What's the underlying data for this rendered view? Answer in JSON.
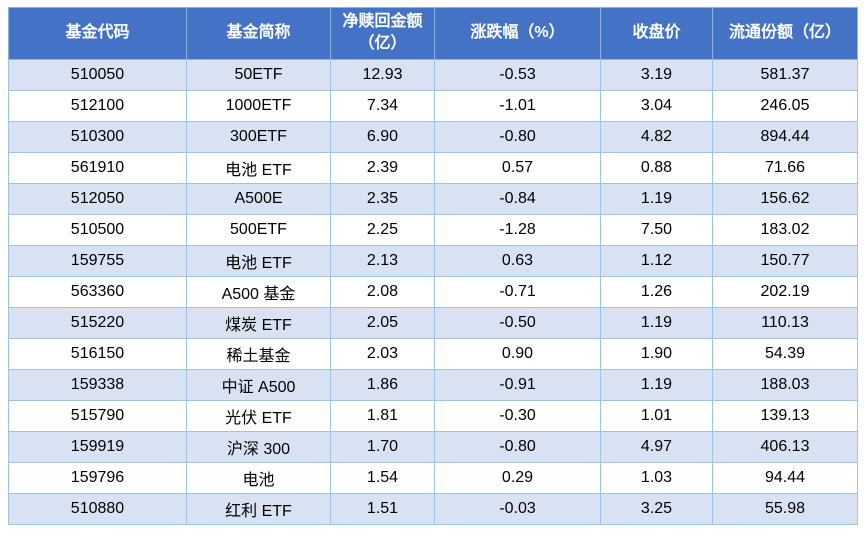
{
  "colors": {
    "header_bg": "#4472C4",
    "header_text": "#ffffff",
    "band_row_bg": "#D9E2F3",
    "border": "#9DC3E6"
  },
  "table": {
    "headers": [
      "基金代码",
      "基金简称",
      "净赎回金额\n（亿）",
      "涨跌幅（%）",
      "收盘价",
      "流通份额（亿）"
    ]
  },
  "chart_data": {
    "type": "table",
    "columns": [
      "基金代码",
      "基金简称",
      "净赎回金额（亿）",
      "涨跌幅（%）",
      "收盘价",
      "流通份额（亿）"
    ],
    "rows": [
      [
        "510050",
        "50ETF",
        "12.93",
        "-0.53",
        "3.19",
        "581.37"
      ],
      [
        "512100",
        "1000ETF",
        "7.34",
        "-1.01",
        "3.04",
        "246.05"
      ],
      [
        "510300",
        "300ETF",
        "6.90",
        "-0.80",
        "4.82",
        "894.44"
      ],
      [
        "561910",
        "电池 ETF",
        "2.39",
        "0.57",
        "0.88",
        "71.66"
      ],
      [
        "512050",
        "A500E",
        "2.35",
        "-0.84",
        "1.19",
        "156.62"
      ],
      [
        "510500",
        "500ETF",
        "2.25",
        "-1.28",
        "7.50",
        "183.02"
      ],
      [
        "159755",
        "电池 ETF",
        "2.13",
        "0.63",
        "1.12",
        "150.77"
      ],
      [
        "563360",
        "A500 基金",
        "2.08",
        "-0.71",
        "1.26",
        "202.19"
      ],
      [
        "515220",
        "煤炭 ETF",
        "2.05",
        "-0.50",
        "1.19",
        "110.13"
      ],
      [
        "516150",
        "稀土基金",
        "2.03",
        "0.90",
        "1.90",
        "54.39"
      ],
      [
        "159338",
        "中证 A500",
        "1.86",
        "-0.91",
        "1.19",
        "188.03"
      ],
      [
        "515790",
        "光伏 ETF",
        "1.81",
        "-0.30",
        "1.01",
        "139.13"
      ],
      [
        "159919",
        "沪深 300",
        "1.70",
        "-0.80",
        "4.97",
        "406.13"
      ],
      [
        "159796",
        "电池",
        "1.54",
        "0.29",
        "1.03",
        "94.44"
      ],
      [
        "510880",
        "红利 ETF",
        "1.51",
        "-0.03",
        "3.25",
        "55.98"
      ]
    ]
  }
}
